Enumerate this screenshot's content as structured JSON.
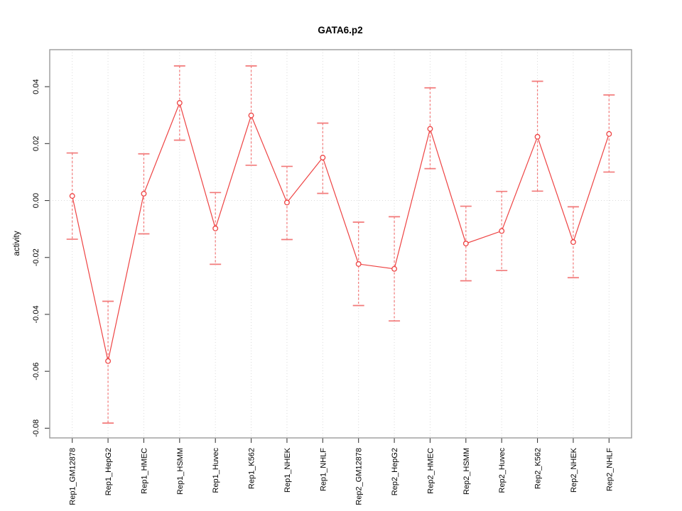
{
  "figure": {
    "background": "#ffffff"
  },
  "chart_data": {
    "type": "line",
    "title": "GATA6.p2",
    "xlabel": "",
    "ylabel": "activity",
    "legend": "none",
    "grid": {
      "vertical_per_category": true,
      "horizontal_at_zero": true
    },
    "categories": [
      "Rep1_GM12878",
      "Rep1_HepG2",
      "Rep1_HMEC",
      "Rep1_HSMM",
      "Rep1_Huvec",
      "Rep1_K562",
      "Rep1_NHEK",
      "Rep1_NHLF",
      "Rep2_GM12878",
      "Rep2_HepG2",
      "Rep2_HMEC",
      "Rep2_HSMM",
      "Rep2_Huvec",
      "Rep2_K562",
      "Rep2_NHEK",
      "Rep2_NHLF"
    ],
    "series": [
      {
        "name": "activity",
        "values": [
          0.0016,
          -0.0564,
          0.0024,
          0.0343,
          -0.0098,
          0.0299,
          -0.0007,
          0.0151,
          -0.0223,
          -0.024,
          0.0252,
          -0.0151,
          -0.0107,
          0.0224,
          -0.0146,
          0.0234
        ],
        "error_high": [
          0.0167,
          -0.0354,
          0.0164,
          0.0473,
          0.0028,
          0.0473,
          0.012,
          0.0272,
          -0.0076,
          -0.0057,
          0.0396,
          -0.002,
          0.0032,
          0.0419,
          -0.0022,
          0.0371
        ],
        "error_low": [
          -0.0136,
          -0.0782,
          -0.0117,
          0.0212,
          -0.0224,
          0.0124,
          -0.0137,
          0.0025,
          -0.0369,
          -0.0423,
          0.0112,
          -0.0282,
          -0.0246,
          0.0033,
          -0.0271,
          0.01
        ]
      }
    ],
    "ylim": [
      -0.0834,
      0.053
    ],
    "yticks": [
      -0.08,
      -0.06,
      -0.04,
      -0.02,
      0.0,
      0.02,
      0.04
    ],
    "colors": {
      "series_line": "#ee4343",
      "point_stroke": "#ee4343",
      "point_fill": "#ffffff",
      "error_bar": "#f27979",
      "grid_line": "#dadada",
      "frame": "#9b9b9b",
      "tick": "#3c3c3c",
      "text": "#000000",
      "background": "#ffffff"
    }
  }
}
